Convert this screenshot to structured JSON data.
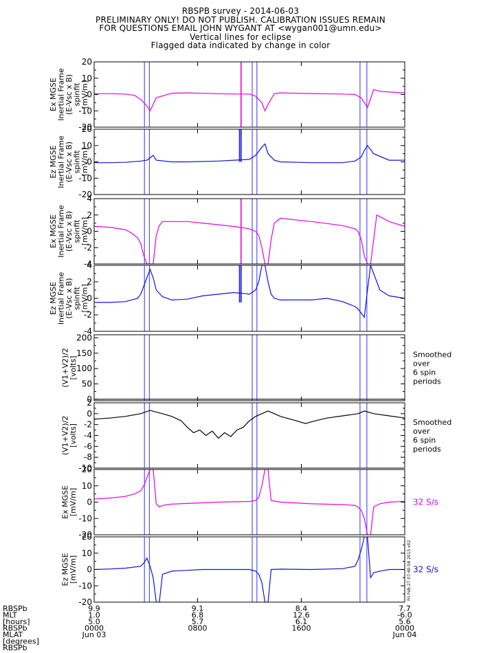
{
  "header": {
    "lines": [
      "RBSPB survey - 2014-06-03",
      "PRELIMINARY ONLY! DO NOT PUBLISH. CALIBRATION ISSUES REMAIN",
      "FOR QUESTIONS EMAIL JOHN WYGANT AT <wygan001@umn.edu>",
      "Vertical lines for eclipse",
      "Flagged data indicated by change in color"
    ]
  },
  "colors": {
    "magenta": "#e600e6",
    "blue": "#1010e0",
    "black": "#000000",
    "eclipse": "#5050ff"
  },
  "chart_data": [
    {
      "type": "line",
      "ylabel_lines": [
        "Ex MGSE",
        "Inertial Frame",
        "(E-Vsc x B)",
        "spinfit",
        "[mV/m]"
      ],
      "yticks": [
        20,
        10,
        0,
        -10,
        -20
      ],
      "ylim": [
        -20,
        20
      ],
      "color": "magenta",
      "series": [
        {
          "x": [
            0.0,
            0.05,
            0.1,
            0.13,
            0.15,
            0.17,
            0.18,
            0.2,
            0.25,
            0.3,
            0.4,
            0.46,
            0.5,
            0.52,
            0.54,
            0.55,
            0.56,
            0.58,
            0.6,
            0.7,
            0.8,
            0.84,
            0.86,
            0.88,
            0.9,
            0.92,
            0.95,
            1.0
          ],
          "y": [
            0.5,
            0.5,
            0.3,
            -0.5,
            -3,
            -7,
            -10,
            -2,
            0.8,
            1,
            0.5,
            0.3,
            0.3,
            -1,
            -5,
            -10,
            -6,
            0.5,
            1,
            0.6,
            0.3,
            0,
            -2,
            -8,
            3,
            2,
            1.5,
            1
          ]
        }
      ],
      "spikes": [
        {
          "x": 0.473,
          "ymin": -20,
          "ymax": 20
        }
      ],
      "right_label": ""
    },
    {
      "type": "line",
      "ylabel_lines": [
        "Ez MGSE",
        "Inertial Frame",
        "(E-Vsc x B)",
        "spinfit",
        "[mV/m]"
      ],
      "yticks": [
        20,
        10,
        0,
        -10,
        -20
      ],
      "ylim": [
        -20,
        20
      ],
      "color": "blue",
      "series": [
        {
          "x": [
            0.0,
            0.05,
            0.1,
            0.15,
            0.17,
            0.18,
            0.19,
            0.2,
            0.25,
            0.3,
            0.4,
            0.45,
            0.5,
            0.52,
            0.54,
            0.55,
            0.56,
            0.58,
            0.6,
            0.7,
            0.8,
            0.84,
            0.86,
            0.87,
            0.88,
            0.9,
            0.95,
            1.0
          ],
          "y": [
            -0.5,
            -0.5,
            -0.3,
            0.5,
            1,
            2.5,
            4,
            1,
            0,
            0,
            0.5,
            1,
            1.5,
            4,
            9,
            11,
            5,
            1,
            0,
            -0.5,
            -0.5,
            0.5,
            3,
            7,
            10,
            5,
            1,
            1
          ]
        }
      ],
      "spikes": [
        {
          "x": 0.468,
          "ymin": 0,
          "ymax": 20
        },
        {
          "x": 0.473,
          "ymin": 0,
          "ymax": 20
        }
      ],
      "right_label": ""
    },
    {
      "type": "line",
      "ylabel_lines": [
        "Ex MGSE",
        "Inertial Frame",
        "(E-Vsc x B)",
        "spinfit",
        "[mV/m]"
      ],
      "yticks": [
        4,
        2,
        0,
        -2,
        -4
      ],
      "ylim": [
        -4,
        4
      ],
      "color": "magenta",
      "series": [
        {
          "x": [
            0.0,
            0.05,
            0.1,
            0.12,
            0.14,
            0.15,
            0.16,
            0.17,
            0.18,
            0.19,
            0.2,
            0.21,
            0.22,
            0.25,
            0.3,
            0.35,
            0.4,
            0.45,
            0.5,
            0.52,
            0.53,
            0.54,
            0.55,
            0.56,
            0.57,
            0.58,
            0.6,
            0.7,
            0.8,
            0.84,
            0.85,
            0.86,
            0.87,
            0.88,
            0.89,
            0.9,
            0.91,
            0.95,
            1.0
          ],
          "y": [
            0.6,
            0.5,
            0.2,
            -0.2,
            -0.8,
            -1.5,
            -3,
            -4,
            -4,
            -4,
            -0.5,
            0.7,
            1.2,
            1.2,
            1.2,
            1,
            0.8,
            0.6,
            0.3,
            0,
            -0.5,
            -2,
            -4,
            -4,
            -1,
            1,
            1.6,
            1.2,
            0.7,
            0.3,
            0,
            -1,
            -3,
            -4,
            -4,
            -1,
            2,
            1.2,
            0.6
          ]
        }
      ],
      "spikes": [
        {
          "x": 0.473,
          "ymin": -4,
          "ymax": 4
        }
      ],
      "right_label": ""
    },
    {
      "type": "line",
      "ylabel_lines": [
        "Ez MGSE",
        "Inertial Frame",
        "(E-Vsc x B)",
        "spinfit",
        "[mV/m]"
      ],
      "yticks": [
        4,
        2,
        0,
        -2,
        -4
      ],
      "ylim": [
        -4,
        4
      ],
      "color": "blue",
      "series": [
        {
          "x": [
            0.0,
            0.05,
            0.1,
            0.12,
            0.14,
            0.15,
            0.16,
            0.17,
            0.18,
            0.19,
            0.2,
            0.22,
            0.25,
            0.3,
            0.35,
            0.4,
            0.45,
            0.48,
            0.5,
            0.52,
            0.53,
            0.54,
            0.55,
            0.56,
            0.57,
            0.58,
            0.6,
            0.7,
            0.75,
            0.8,
            0.84,
            0.85,
            0.86,
            0.87,
            0.88,
            0.89,
            0.9,
            0.92,
            0.95,
            1.0
          ],
          "y": [
            -0.5,
            -0.5,
            -0.4,
            -0.2,
            0,
            0.5,
            1.5,
            2.5,
            3.5,
            2.5,
            1,
            0.2,
            -0.2,
            -0.1,
            0.3,
            0.5,
            0.7,
            0.6,
            0.5,
            1,
            2,
            4,
            4,
            2,
            0.5,
            0,
            -0.2,
            -0.2,
            0,
            -0.4,
            -1,
            -1.3,
            -1.8,
            -2.3,
            1,
            4,
            3,
            1,
            0.3,
            0
          ]
        }
      ],
      "spikes": [
        {
          "x": 0.468,
          "ymin": -0.5,
          "ymax": 4
        },
        {
          "x": 0.473,
          "ymin": -0.5,
          "ymax": 4
        }
      ],
      "right_label": ""
    },
    {
      "type": "line",
      "ylabel_lines": [
        "(V1+V2)/2",
        "[volts]"
      ],
      "yticks": [
        200,
        150,
        100,
        50,
        0
      ],
      "ylim": [
        -5,
        210
      ],
      "color": "black",
      "series": [
        {
          "x": [
            0.0,
            0.2,
            0.4,
            0.6,
            0.8,
            1.0
          ],
          "y": [
            0,
            0,
            0,
            0,
            0,
            0
          ]
        }
      ],
      "spikes": [],
      "right_label": "Smoothed\nover\n6 spin\nperiods"
    },
    {
      "type": "line",
      "ylabel_lines": [
        "(V1+V2)/2",
        "[volts]"
      ],
      "yticks": [
        2,
        0,
        -2,
        -4,
        -6,
        -8,
        -10
      ],
      "ylim": [
        -10,
        2
      ],
      "color": "black",
      "series": [
        {
          "x": [
            0.0,
            0.05,
            0.1,
            0.15,
            0.18,
            0.22,
            0.25,
            0.28,
            0.3,
            0.32,
            0.34,
            0.36,
            0.38,
            0.4,
            0.42,
            0.44,
            0.46,
            0.48,
            0.5,
            0.52,
            0.54,
            0.56,
            0.58,
            0.6,
            0.65,
            0.68,
            0.7,
            0.72,
            0.75,
            0.8,
            0.85,
            0.87,
            0.9,
            0.95,
            1.0
          ],
          "y": [
            -1,
            -0.8,
            -0.5,
            0,
            0.6,
            0,
            -0.5,
            -1.3,
            -2.5,
            -3.5,
            -3,
            -4,
            -3.2,
            -4.5,
            -3.5,
            -4.2,
            -3,
            -2.5,
            -1.3,
            -0.5,
            0,
            0.5,
            0,
            -0.5,
            -1.3,
            -1.8,
            -1.5,
            -1.2,
            -0.8,
            -0.4,
            0,
            0.5,
            0,
            -0.4,
            -0.8
          ]
        }
      ],
      "spikes": [],
      "right_label": "Smoothed\nover\n6 spin\nperiods"
    },
    {
      "type": "line",
      "ylabel_lines": [
        "Ex MGSE",
        "[mV/m]"
      ],
      "yticks": [
        20,
        10,
        0,
        -10,
        -20
      ],
      "ylim": [
        -20,
        20
      ],
      "color": "magenta",
      "series": [
        {
          "x": [
            0.0,
            0.05,
            0.1,
            0.13,
            0.15,
            0.16,
            0.17,
            0.18,
            0.19,
            0.2,
            0.21,
            0.22,
            0.25,
            0.3,
            0.35,
            0.4,
            0.45,
            0.5,
            0.52,
            0.53,
            0.54,
            0.55,
            0.56,
            0.57,
            0.6,
            0.7,
            0.8,
            0.84,
            0.85,
            0.86,
            0.87,
            0.88,
            0.89,
            0.9,
            0.92,
            0.95,
            1.0
          ],
          "y": [
            2,
            2.5,
            3.5,
            5,
            7,
            10,
            15,
            20,
            20,
            -1,
            -3,
            -2,
            -1.2,
            -0.8,
            -0.4,
            0,
            0.2,
            0.4,
            1,
            3,
            10,
            20,
            20,
            1,
            0,
            -1,
            -1.5,
            -2,
            -3,
            -5,
            -10,
            -20,
            -20,
            -3,
            -1,
            0,
            0.5
          ]
        }
      ],
      "spikes": [],
      "right_label": "32 S/s"
    },
    {
      "type": "line",
      "ylabel_lines": [
        "Ez MGSE",
        "[mV/m]"
      ],
      "yticks": [
        20,
        10,
        0,
        -10,
        -20
      ],
      "ylim": [
        -20,
        20
      ],
      "color": "blue",
      "series": [
        {
          "x": [
            0.0,
            0.05,
            0.1,
            0.15,
            0.16,
            0.17,
            0.18,
            0.19,
            0.2,
            0.21,
            0.22,
            0.25,
            0.3,
            0.35,
            0.4,
            0.45,
            0.5,
            0.52,
            0.53,
            0.54,
            0.55,
            0.56,
            0.57,
            0.6,
            0.7,
            0.8,
            0.84,
            0.85,
            0.86,
            0.87,
            0.88,
            0.89,
            0.9,
            0.92,
            0.95,
            1.0
          ],
          "y": [
            0,
            0.3,
            0.8,
            2,
            4,
            7,
            2,
            -5,
            -20,
            -20,
            -3,
            -1,
            -0.5,
            0,
            0,
            0,
            0,
            -1,
            -3,
            -8,
            -20,
            -20,
            0,
            0.2,
            0,
            0.5,
            2,
            6,
            12,
            20,
            20,
            -5,
            -2,
            -1,
            0,
            0
          ]
        }
      ],
      "spikes": [],
      "right_label": "32 S/s"
    }
  ],
  "eclipse_lines": [
    0.162,
    0.178,
    0.509,
    0.524,
    0.856,
    0.878
  ],
  "xaxis": {
    "row_labels": [
      "RBSPb",
      "MLT",
      "[hours]",
      "RBSPb",
      "MLAT",
      "[degrees]",
      "RBSPb"
    ],
    "ticks": [
      {
        "x": 0.0,
        "lines": [
          "9.9",
          "1.0",
          "5.0",
          "0000",
          "Jun 03"
        ]
      },
      {
        "x": 0.333,
        "lines": [
          "9.1",
          "6.8",
          "5.7",
          "0800",
          ""
        ]
      },
      {
        "x": 0.667,
        "lines": [
          "8.4",
          "12.6",
          "6.1",
          "1600",
          ""
        ]
      },
      {
        "x": 1.0,
        "lines": [
          "7.7",
          "-6.0",
          "5.6",
          "0000",
          "Jun 04"
        ]
      }
    ]
  },
  "timestamp": "Fri Feb 27 07:40:58 2015 v02"
}
